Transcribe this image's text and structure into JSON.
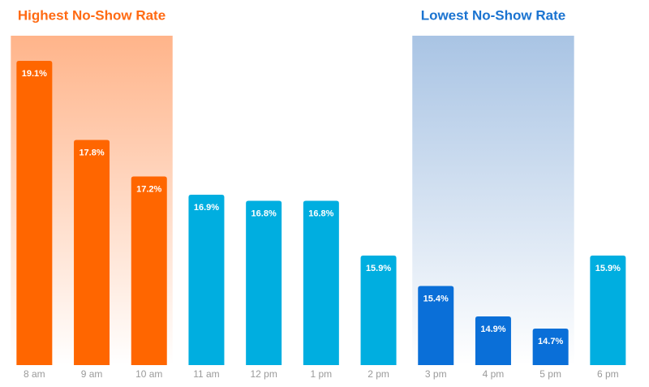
{
  "chart_data": {
    "type": "bar",
    "categories": [
      "8 am",
      "9 am",
      "10 am",
      "11 am",
      "12 pm",
      "1 pm",
      "2 pm",
      "3 pm",
      "4 pm",
      "5 pm",
      "6 pm"
    ],
    "values": [
      19.1,
      17.8,
      17.2,
      16.9,
      16.8,
      16.8,
      15.9,
      15.4,
      14.9,
      14.7,
      15.9
    ],
    "value_labels": [
      "19.1%",
      "17.8%",
      "17.2%",
      "16.9%",
      "16.8%",
      "16.8%",
      "15.9%",
      "15.4%",
      "14.9%",
      "14.7%",
      "15.9%"
    ],
    "colors": [
      "#ff6600",
      "#ff6600",
      "#ff6600",
      "#00aee0",
      "#00aee0",
      "#00aee0",
      "#00aee0",
      "#0a6fd8",
      "#0a6fd8",
      "#0a6fd8",
      "#00aee0"
    ],
    "ylim": [
      14.1,
      19.1
    ],
    "highlights": [
      {
        "label": "Highest No-Show Rate",
        "color": "#ff6a13",
        "band_color": "#ffb48a",
        "from": "8 am",
        "to": "10 am"
      },
      {
        "label": "Lowest No-Show Rate",
        "color": "#1a73d0",
        "band_color": "#a9c4e4",
        "from": "3 pm",
        "to": "5 pm"
      }
    ]
  }
}
